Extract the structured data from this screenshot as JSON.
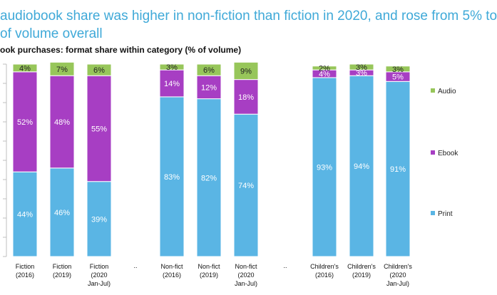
{
  "headline": {
    "line1": "audiobook share was higher in non-fiction than fiction in 2020, and rose from 5% to",
    "line2": "of volume overall"
  },
  "chart_data": {
    "type": "bar",
    "stacked": true,
    "title": "ook purchases: format share within category (% of volume)",
    "xlabel": "",
    "ylabel": "",
    "ylim": [
      0,
      100
    ],
    "grid": false,
    "legend_position": "right",
    "categories": [
      [
        "Fiction",
        "(2016)"
      ],
      [
        "Fiction",
        "(2019)"
      ],
      [
        "Fiction",
        "(2020",
        "Jan-Jul)"
      ],
      [
        "..."
      ],
      [
        "Non-fict",
        "(2016)"
      ],
      [
        "Non-fict",
        "(2019)"
      ],
      [
        "Non-fict",
        "(2020",
        "Jan-Jul)"
      ],
      [
        "..."
      ],
      [
        "Children's",
        "(2016)"
      ],
      [
        "Children's",
        "(2019)"
      ],
      [
        "Children's",
        "(2020",
        "Jan-Jul)"
      ]
    ],
    "series": [
      {
        "name": "Print",
        "color": "#5ab5e4",
        "values": [
          44,
          46,
          39,
          null,
          83,
          82,
          74,
          null,
          93,
          94,
          91
        ],
        "labels": [
          "44%",
          "46%",
          "39%",
          "",
          "83%",
          "82%",
          "74%",
          "",
          "93%",
          "94%",
          "91%"
        ]
      },
      {
        "name": "Ebook",
        "color": "#a73ec3",
        "values": [
          52,
          48,
          55,
          null,
          14,
          12,
          18,
          null,
          4,
          3,
          5
        ],
        "labels": [
          "52%",
          "48%",
          "55%",
          "",
          "14%",
          "12%",
          "18%",
          "",
          "4%",
          "3%",
          "5%"
        ]
      },
      {
        "name": "Audio",
        "color": "#97c65a",
        "values": [
          4,
          7,
          6,
          null,
          3,
          6,
          9,
          null,
          2,
          3,
          3
        ],
        "labels": [
          "4%",
          "7%",
          "6%",
          "",
          "3%",
          "6%",
          "9%",
          "",
          "2%",
          "3%",
          "3%"
        ]
      }
    ],
    "legend": [
      "Audio",
      "Ebook",
      "Print"
    ]
  }
}
